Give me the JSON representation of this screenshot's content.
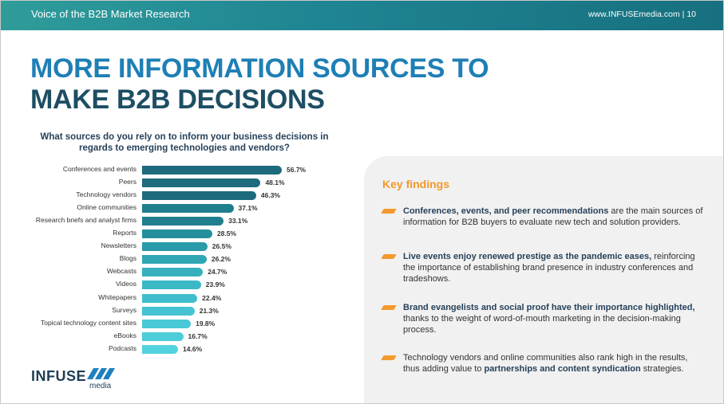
{
  "header": {
    "left": "Voice of the B2B Market Research",
    "right": "www.INFUSEmedia.com  |  10"
  },
  "title": {
    "line1": "MORE INFORMATION SOURCES TO",
    "line2": "MAKE B2B DECISIONS"
  },
  "chart_data": {
    "type": "bar",
    "orientation": "horizontal",
    "title": "What sources do you rely on to inform your business decisions in regards to emerging technologies and vendors?",
    "categories": [
      "Conferences and events",
      "Peers",
      "Technology vendors",
      "Online communities",
      "Research briefs and analyst firms",
      "Reports",
      "Newsletters",
      "Blogs",
      "Webcasts",
      "Videos",
      "Whitepapers",
      "Surveys",
      "Topical technology content sites",
      "eBooks",
      "Podcasts"
    ],
    "values": [
      56.7,
      48.1,
      46.3,
      37.1,
      33.1,
      28.5,
      26.5,
      26.2,
      24.7,
      23.9,
      22.4,
      21.3,
      19.8,
      16.7,
      14.6
    ],
    "value_labels": [
      "56.7%",
      "48.1%",
      "46.3%",
      "37.1%",
      "33.1%",
      "28.5%",
      "26.5%",
      "26.2%",
      "24.7%",
      "23.9%",
      "22.4%",
      "21.3%",
      "19.8%",
      "16.7%",
      "14.6%"
    ],
    "bar_colors": [
      "#1d6b7c",
      "#1d6b7c",
      "#1d6b7c",
      "#1f7f8c",
      "#1f7f8c",
      "#23909c",
      "#2a9ba8",
      "#2fa6b4",
      "#36b0bd",
      "#3bb8c6",
      "#3fbdcc",
      "#45c3d2",
      "#49c8d7",
      "#4dcdda",
      "#52d2de"
    ]
  },
  "findings": {
    "title": "Key findings",
    "items": [
      {
        "bold": "Conferences, events, and peer recommendations",
        "rest": " are the main sources of information for B2B buyers to evaluate new tech and solution providers."
      },
      {
        "bold": "Live events enjoy renewed prestige as the pandemic eases,",
        "rest": " reinforcing the importance of establishing brand presence in industry conferences and tradeshows."
      },
      {
        "bold": "Brand evangelists and social proof have their importance highlighted,",
        "rest": " thanks to the weight of word-of-mouth marketing in the decision-making process."
      },
      {
        "pre": "Technology vendors and online communities also rank high in the results, thus adding value to ",
        "bold": "partnerships and content syndication",
        "rest": " strategies."
      }
    ]
  },
  "logo": {
    "word": "INFUSE",
    "sub": "media"
  },
  "colors": {
    "accent": "#1e7fb5",
    "dark": "#1d4e63",
    "orange": "#f2982a"
  }
}
